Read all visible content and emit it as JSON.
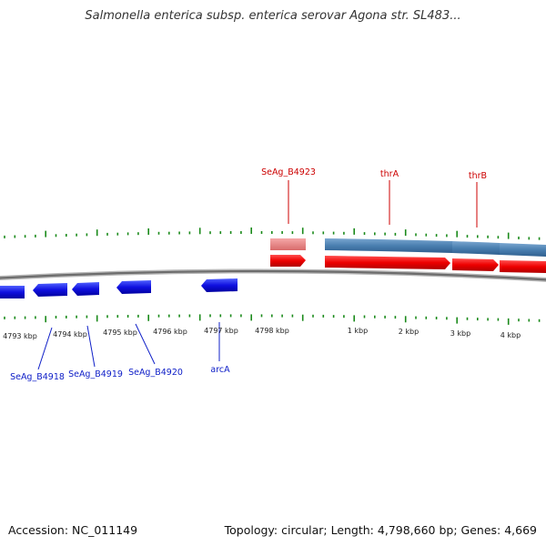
{
  "title": "Salmonella enterica subsp. enterica serovar Agona str. SL483...",
  "footer": {
    "accession": "Accession: NC_011149",
    "summary": "Topology: circular; Length: 4,798,660 bp; Genes: 4,669"
  },
  "scale_labels": [
    "4793 kbp",
    "4794 kbp",
    "4795 kbp",
    "4796 kbp",
    "4797 kbp",
    "4798 kbp",
    "1 kbp",
    "2 kbp",
    "3 kbp",
    "4 kbp"
  ],
  "gene_labels": {
    "top": [
      "SeAg_B4923",
      "thrA",
      "thrB"
    ],
    "bottom": [
      "SeAg_B4918",
      "SeAg_B4919",
      "SeAg_B4920",
      "arcA"
    ]
  },
  "colors": {
    "forward_cds": "#ee0000",
    "reverse_cds": "#1010e0",
    "forward_feature": "#4a7fb0",
    "pseudo_feature": "#e88080",
    "ticks": "#1a8a1a",
    "backbone": "#777777"
  }
}
